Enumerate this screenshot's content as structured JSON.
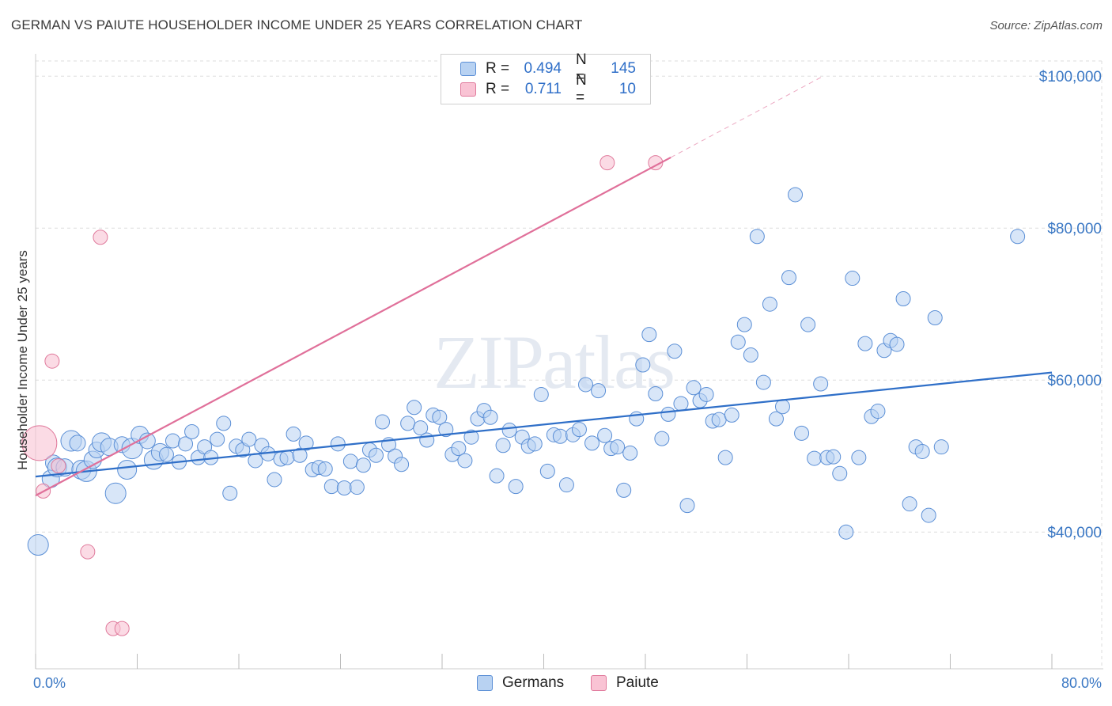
{
  "title": "GERMAN VS PAIUTE HOUSEHOLDER INCOME UNDER 25 YEARS CORRELATION CHART",
  "source": "Source: ZipAtlas.com",
  "watermark": "ZIPatlas",
  "legend": {
    "rows": [
      {
        "r_label": "R =",
        "r_value": "0.494",
        "n_label": "N =",
        "n_value": "145"
      },
      {
        "r_label": "R =",
        "r_value": "0.711",
        "n_label": "N =",
        "n_value": "10"
      }
    ]
  },
  "bottom_legend": {
    "germans": "Germans",
    "paiute": "Paiute"
  },
  "colors": {
    "blue_fill": "#b8d2f2",
    "blue_stroke": "#5b8fd6",
    "blue_line": "#2f6fc8",
    "pink_fill": "#f9c3d4",
    "pink_stroke": "#e07a9c",
    "pink_line": "#e0709a",
    "tick_text": "#3b78c4",
    "grid": "#dddddd"
  },
  "chart_data": {
    "type": "scatter",
    "title": "GERMAN VS PAIUTE HOUSEHOLDER INCOME UNDER 25 YEARS CORRELATION CHART",
    "xlabel": "",
    "ylabel": "Householder Income Under 25 years",
    "xlim": [
      0,
      80
    ],
    "ylim": [
      22000,
      102000
    ],
    "x_tick_labels": [
      {
        "x": 0,
        "label": "0.0%"
      },
      {
        "x": 80,
        "label": "80.0%"
      }
    ],
    "y_tick_labels": [
      {
        "y": 40000,
        "label": "$40,000"
      },
      {
        "y": 60000,
        "label": "$60,000"
      },
      {
        "y": 80000,
        "label": "$80,000"
      },
      {
        "y": 100000,
        "label": "$100,000"
      }
    ],
    "grid": true,
    "legend": "top-center",
    "series": [
      {
        "name": "Germans",
        "r": 0.494,
        "n": 145,
        "trend": {
          "x0": 0,
          "y0": 47300,
          "x1": 80,
          "y1": 61000
        },
        "points": [
          [
            0.2,
            38300
          ],
          [
            1.2,
            47000
          ],
          [
            1.4,
            49100
          ],
          [
            1.7,
            48500
          ],
          [
            2.3,
            48500
          ],
          [
            2.8,
            52000
          ],
          [
            3.3,
            51700
          ],
          [
            3.6,
            48200
          ],
          [
            4.0,
            48000
          ],
          [
            4.5,
            49500
          ],
          [
            4.8,
            50800
          ],
          [
            5.2,
            51800
          ],
          [
            5.8,
            51200
          ],
          [
            6.3,
            45100
          ],
          [
            6.8,
            51500
          ],
          [
            7.2,
            48200
          ],
          [
            7.6,
            51000
          ],
          [
            8.2,
            52800
          ],
          [
            8.8,
            52000
          ],
          [
            9.3,
            49500
          ],
          [
            9.8,
            50500
          ],
          [
            10.3,
            50200
          ],
          [
            10.8,
            52000
          ],
          [
            11.3,
            49200
          ],
          [
            11.8,
            51600
          ],
          [
            12.3,
            53200
          ],
          [
            12.8,
            49800
          ],
          [
            13.3,
            51200
          ],
          [
            13.8,
            49800
          ],
          [
            14.3,
            52200
          ],
          [
            14.8,
            54300
          ],
          [
            15.3,
            45100
          ],
          [
            15.8,
            51300
          ],
          [
            16.3,
            50800
          ],
          [
            16.8,
            52200
          ],
          [
            17.3,
            49400
          ],
          [
            17.8,
            51400
          ],
          [
            18.3,
            50300
          ],
          [
            18.8,
            46900
          ],
          [
            19.3,
            49600
          ],
          [
            19.8,
            49800
          ],
          [
            20.3,
            52900
          ],
          [
            20.8,
            50100
          ],
          [
            21.3,
            51700
          ],
          [
            21.8,
            48200
          ],
          [
            22.3,
            48500
          ],
          [
            22.8,
            48300
          ],
          [
            23.3,
            46000
          ],
          [
            23.8,
            51600
          ],
          [
            24.3,
            45800
          ],
          [
            24.8,
            49300
          ],
          [
            25.3,
            45900
          ],
          [
            25.8,
            48800
          ],
          [
            26.3,
            50800
          ],
          [
            26.8,
            50100
          ],
          [
            27.3,
            54500
          ],
          [
            27.8,
            51500
          ],
          [
            28.3,
            50000
          ],
          [
            28.8,
            48900
          ],
          [
            29.3,
            54300
          ],
          [
            29.8,
            56400
          ],
          [
            30.3,
            53700
          ],
          [
            30.8,
            52100
          ],
          [
            31.3,
            55400
          ],
          [
            31.8,
            55100
          ],
          [
            32.3,
            53500
          ],
          [
            32.8,
            50200
          ],
          [
            33.3,
            51000
          ],
          [
            33.8,
            49400
          ],
          [
            34.3,
            52500
          ],
          [
            34.8,
            54900
          ],
          [
            35.3,
            56000
          ],
          [
            35.8,
            55100
          ],
          [
            36.3,
            47400
          ],
          [
            36.8,
            51400
          ],
          [
            37.3,
            53400
          ],
          [
            37.8,
            46000
          ],
          [
            38.3,
            52500
          ],
          [
            38.8,
            51300
          ],
          [
            39.3,
            51600
          ],
          [
            39.8,
            58100
          ],
          [
            40.3,
            48000
          ],
          [
            40.8,
            52800
          ],
          [
            41.3,
            52600
          ],
          [
            41.8,
            46200
          ],
          [
            42.3,
            52800
          ],
          [
            42.8,
            53500
          ],
          [
            43.3,
            59400
          ],
          [
            43.8,
            51700
          ],
          [
            44.3,
            58600
          ],
          [
            44.8,
            52700
          ],
          [
            45.3,
            51000
          ],
          [
            45.8,
            51200
          ],
          [
            46.3,
            45500
          ],
          [
            46.8,
            50400
          ],
          [
            47.3,
            54900
          ],
          [
            47.8,
            62000
          ],
          [
            48.3,
            66000
          ],
          [
            48.8,
            58200
          ],
          [
            49.3,
            52300
          ],
          [
            49.8,
            55500
          ],
          [
            50.3,
            63800
          ],
          [
            50.8,
            56900
          ],
          [
            51.3,
            43500
          ],
          [
            51.8,
            59000
          ],
          [
            52.3,
            57300
          ],
          [
            52.8,
            58100
          ],
          [
            53.3,
            54600
          ],
          [
            53.8,
            54800
          ],
          [
            54.3,
            49800
          ],
          [
            54.8,
            55400
          ],
          [
            55.3,
            65000
          ],
          [
            55.8,
            67300
          ],
          [
            56.3,
            63300
          ],
          [
            56.8,
            78900
          ],
          [
            57.3,
            59700
          ],
          [
            57.8,
            70000
          ],
          [
            58.3,
            54900
          ],
          [
            58.8,
            56500
          ],
          [
            59.3,
            73500
          ],
          [
            59.8,
            84400
          ],
          [
            60.3,
            53000
          ],
          [
            60.8,
            67300
          ],
          [
            61.3,
            49700
          ],
          [
            61.8,
            59500
          ],
          [
            62.3,
            49800
          ],
          [
            62.8,
            49900
          ],
          [
            63.3,
            47700
          ],
          [
            63.8,
            40000
          ],
          [
            64.3,
            73400
          ],
          [
            64.8,
            49800
          ],
          [
            65.3,
            64800
          ],
          [
            65.8,
            55200
          ],
          [
            66.3,
            55900
          ],
          [
            66.8,
            63900
          ],
          [
            67.3,
            65200
          ],
          [
            67.8,
            64700
          ],
          [
            68.3,
            70700
          ],
          [
            68.8,
            43700
          ],
          [
            69.3,
            51200
          ],
          [
            69.8,
            50600
          ],
          [
            70.3,
            42200
          ],
          [
            70.8,
            68200
          ],
          [
            71.3,
            51200
          ],
          [
            77.3,
            78900
          ]
        ]
      },
      {
        "name": "Paiute",
        "r": 0.711,
        "n": 10,
        "trend": {
          "x0": 0,
          "y0": 44800,
          "x1": 50,
          "y1": 89300,
          "dash_to_x": 62,
          "dash_to_y": 100000
        },
        "points": [
          [
            0.3,
            51700
          ],
          [
            0.6,
            45400
          ],
          [
            1.3,
            62500
          ],
          [
            1.8,
            48700
          ],
          [
            4.1,
            37400
          ],
          [
            5.1,
            78800
          ],
          [
            6.1,
            27300
          ],
          [
            6.8,
            27300
          ],
          [
            45.0,
            88600
          ],
          [
            48.8,
            88600
          ]
        ]
      }
    ]
  }
}
